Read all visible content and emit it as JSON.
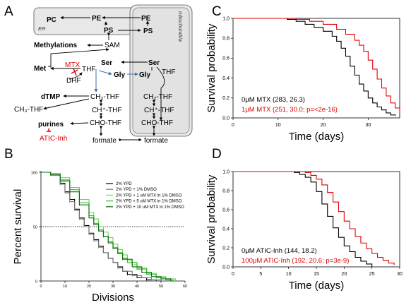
{
  "panels": {
    "A": "A",
    "B": "B",
    "C": "C",
    "D": "D"
  },
  "pathway": {
    "compartments": {
      "er": "ER",
      "mito": "mitochondria"
    },
    "nodes": {
      "pc": "PC",
      "pe_er": "PE",
      "pe_m": "PE",
      "ps_er": "PS",
      "ps_m": "PS",
      "methylations": "Methylations",
      "sam": "SAM",
      "met": "Met",
      "mtx": "MTX",
      "thf": "THF",
      "dhf": "DHF",
      "ser_c": "Ser",
      "ser_m": "Ser",
      "gly_c": "Gly",
      "gly_m": "Gly",
      "thf_m": "THF",
      "dtmp": "dTMP",
      "ch2_thf": "CH₂-THF",
      "ch3_thf": "CH₃-THF",
      "chp_thf": "CH⁺-THF",
      "cho_thf": "CHO-THF",
      "purines": "purines",
      "atic": "ATIC-Inh",
      "formate": "formate",
      "ch2_thf_m": "CH₂-THF",
      "chp_thf_m": "CH⁺-THF",
      "cho_thf_m": "CHO-THF",
      "formate_m": "formate"
    }
  },
  "chart_data": [
    {
      "panel": "B",
      "type": "line",
      "xlabel": "Divisions",
      "ylabel": "Percent survival",
      "xlim": [
        0,
        60
      ],
      "ylim": [
        0,
        100
      ],
      "xticks": [
        0,
        10,
        20,
        30,
        40,
        50,
        60
      ],
      "yticks": [
        0,
        50,
        100
      ],
      "reference_line": {
        "y": 50,
        "style": "dotted"
      },
      "legend_position": "top-right",
      "series": [
        {
          "name": "2% YPD",
          "color": "#000000",
          "x": [
            0,
            4,
            8,
            10,
            12,
            14,
            16,
            18,
            20,
            22,
            24,
            26,
            28,
            30,
            32,
            34,
            36,
            40,
            44,
            48
          ],
          "y": [
            100,
            98,
            90,
            82,
            75,
            66,
            58,
            51,
            44,
            38,
            32,
            26,
            21,
            17,
            13,
            9,
            6,
            3,
            1,
            0
          ]
        },
        {
          "name": "2% YPD + 1% DMSO",
          "color": "#777777",
          "x": [
            0,
            4,
            8,
            10,
            12,
            14,
            16,
            18,
            20,
            22,
            24,
            26,
            28,
            30,
            32,
            34,
            38,
            42,
            46,
            50
          ],
          "y": [
            100,
            97,
            89,
            81,
            73,
            65,
            57,
            50,
            43,
            37,
            31,
            26,
            21,
            17,
            12,
            9,
            5,
            3,
            1,
            0
          ]
        },
        {
          "name": "2% YPD + 1 uM MTX in 1% DMSO",
          "color": "#66dd44",
          "x": [
            0,
            4,
            8,
            12,
            16,
            20,
            22,
            24,
            26,
            28,
            30,
            32,
            34,
            36,
            38,
            40,
            44,
            48,
            52,
            56
          ],
          "y": [
            100,
            99,
            95,
            86,
            75,
            63,
            57,
            50,
            45,
            40,
            34,
            29,
            24,
            19,
            15,
            12,
            7,
            4,
            2,
            0
          ]
        },
        {
          "name": "2% YPD + 5 uM MTX in 1% DMSO",
          "color": "#22bb22",
          "x": [
            0,
            4,
            8,
            12,
            16,
            20,
            22,
            24,
            26,
            28,
            30,
            32,
            34,
            36,
            40,
            44,
            48,
            52,
            55
          ],
          "y": [
            100,
            98,
            93,
            84,
            72,
            60,
            53,
            47,
            41,
            36,
            31,
            26,
            21,
            17,
            11,
            6,
            3,
            1,
            0
          ]
        },
        {
          "name": "2% YPD + 10 uM MTX in 1% DMSO",
          "color": "#0a6a12",
          "x": [
            0,
            4,
            8,
            12,
            16,
            20,
            22,
            24,
            26,
            28,
            30,
            32,
            34,
            38,
            42,
            46,
            50,
            54
          ],
          "y": [
            100,
            98,
            92,
            82,
            70,
            58,
            52,
            46,
            41,
            35,
            30,
            25,
            20,
            13,
            8,
            4,
            2,
            0
          ]
        }
      ]
    },
    {
      "panel": "C",
      "type": "line",
      "xlabel": "Time (days)",
      "ylabel": "Survival probability",
      "xlim": [
        0,
        37
      ],
      "ylim": [
        0,
        1.0
      ],
      "xticks": [
        0,
        10,
        20,
        30
      ],
      "yticks": [
        0.0,
        0.2,
        0.4,
        0.6,
        0.8,
        1.0
      ],
      "legend_position": "bottom-left",
      "series": [
        {
          "name": "0μM MTX (283, 26.3)",
          "color": "#000000",
          "x": [
            0,
            12,
            14,
            16,
            18,
            20,
            22,
            23,
            24,
            25,
            26,
            27,
            28,
            29,
            30,
            31,
            32,
            33,
            34,
            35,
            36
          ],
          "y": [
            1.0,
            0.99,
            0.97,
            0.94,
            0.91,
            0.87,
            0.82,
            0.77,
            0.7,
            0.62,
            0.52,
            0.43,
            0.34,
            0.27,
            0.2,
            0.15,
            0.11,
            0.08,
            0.05,
            0.03,
            0.02
          ]
        },
        {
          "name": "1μM MTX (251, 30.0; p=<2e-16)",
          "color": "#e00000",
          "x": [
            0,
            14,
            17,
            20,
            23,
            25,
            27,
            28,
            29,
            30,
            31,
            32,
            33,
            34,
            35,
            36,
            37
          ],
          "y": [
            1.0,
            0.99,
            0.97,
            0.94,
            0.89,
            0.84,
            0.78,
            0.73,
            0.67,
            0.58,
            0.49,
            0.39,
            0.3,
            0.22,
            0.15,
            0.1,
            0.05
          ]
        }
      ]
    },
    {
      "panel": "D",
      "type": "line",
      "xlabel": "Time (days)",
      "ylabel": "Survival probability",
      "xlim": [
        0,
        30
      ],
      "ylim": [
        0,
        1.0
      ],
      "xticks": [
        0,
        5,
        10,
        15,
        20,
        25,
        30
      ],
      "yticks": [
        0.0,
        0.2,
        0.4,
        0.6,
        0.8,
        1.0
      ],
      "legend_position": "bottom-left",
      "series": [
        {
          "name": "0μM ATIC-Inh (144, 18.2)",
          "color": "#000000",
          "x": [
            0,
            11,
            12,
            13,
            14,
            15,
            16,
            17,
            18,
            19,
            20,
            21,
            22,
            23,
            24,
            25
          ],
          "y": [
            1.0,
            0.99,
            0.97,
            0.94,
            0.89,
            0.79,
            0.66,
            0.53,
            0.41,
            0.31,
            0.22,
            0.16,
            0.1,
            0.06,
            0.03,
            0.0
          ]
        },
        {
          "name": "100μM ATIC-Inh (192, 20.6; p=3e-9)",
          "color": "#e00000",
          "x": [
            0,
            13,
            14,
            15,
            16,
            17,
            18,
            19,
            20,
            21,
            22,
            23,
            24,
            25,
            26,
            27,
            28,
            29
          ],
          "y": [
            1.0,
            0.99,
            0.96,
            0.92,
            0.86,
            0.78,
            0.68,
            0.58,
            0.48,
            0.4,
            0.32,
            0.25,
            0.19,
            0.14,
            0.1,
            0.07,
            0.04,
            0.02
          ]
        }
      ]
    }
  ]
}
